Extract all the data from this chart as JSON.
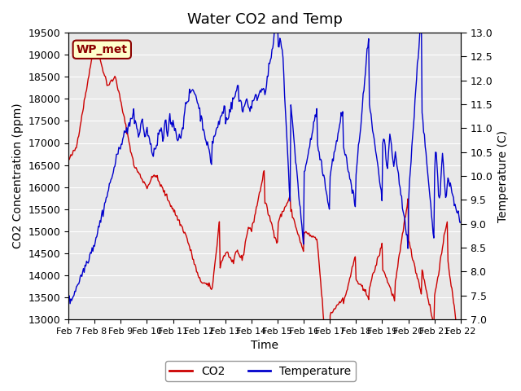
{
  "title": "Water CO2 and Temp",
  "xlabel": "Time",
  "ylabel_left": "CO2 Concentration (ppm)",
  "ylabel_right": "Temperature (C)",
  "annotation": "WP_met",
  "ylim_left": [
    13000,
    19500
  ],
  "ylim_right": [
    7.0,
    13.0
  ],
  "yticks_left": [
    13000,
    13500,
    14000,
    14500,
    15000,
    15500,
    16000,
    16500,
    17000,
    17500,
    18000,
    18500,
    19000,
    19500
  ],
  "yticks_right": [
    7.0,
    7.5,
    8.0,
    8.5,
    9.0,
    9.5,
    10.0,
    10.5,
    11.0,
    11.5,
    12.0,
    12.5,
    13.0
  ],
  "xtick_labels": [
    "Feb 7",
    "Feb 8",
    "Feb 9",
    "Feb 10",
    "Feb 11",
    "Feb 12",
    "Feb 13",
    "Feb 14",
    "Feb 15",
    "Feb 16",
    "Feb 17",
    "Feb 18",
    "Feb 19",
    "Feb 20",
    "Feb 21",
    "Feb 22"
  ],
  "co2_color": "#cc0000",
  "temp_color": "#0000cc",
  "background_color": "#e8e8e8",
  "legend_co2": "CO2",
  "legend_temp": "Temperature",
  "title_fontsize": 13,
  "axis_label_fontsize": 10,
  "tick_fontsize": 9,
  "legend_fontsize": 10
}
